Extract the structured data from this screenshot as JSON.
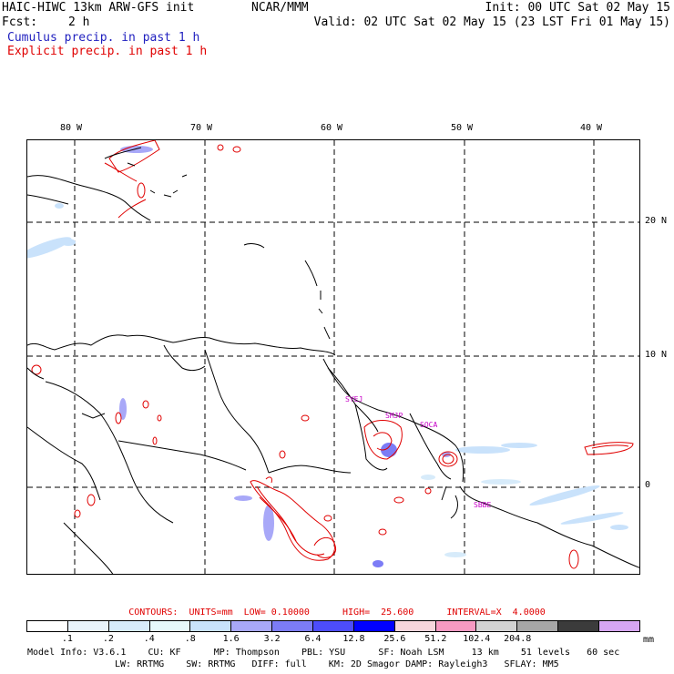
{
  "header": {
    "title": "HAIC-HIWC 13km ARW-GFS init",
    "org": "NCAR/MMM",
    "init": "Init: 00 UTC Sat 02 May 15",
    "fcst_label": "Fcst:",
    "fcst_value": "2 h",
    "valid": "Valid: 02 UTC Sat 02 May 15 (23 LST Fri 01 May 15)",
    "cumulus": "Cumulus precip. in past 1 h",
    "explicit": "Explicit precip. in past 1 h"
  },
  "map": {
    "lon_labels": [
      "80 W",
      "70 W",
      "60 W",
      "50 W",
      "40 W"
    ],
    "lat_labels": [
      "20 N",
      "10 N",
      "0"
    ],
    "stations": [
      "SYEJ",
      "SMJP",
      "SOCA",
      "SBBE"
    ]
  },
  "contours_line": "CONTOURS:  UNITS=mm  LOW= 0.10000      HIGH=  25.600      INTERVAL=X  4.0000",
  "colorbar": {
    "colors": [
      "#ffffff",
      "#e8f3fb",
      "#d7ebfa",
      "#e6f8fa",
      "#c9e2fb",
      "#a8a8f8",
      "#7c7cf6",
      "#4d4dfa",
      "#0000ff",
      "#f7d6dc",
      "#f79ac2",
      "#d2d2d2",
      "#a6a6a6",
      "#3b3b3b",
      "#d6a6f3"
    ],
    "ticks": [
      ".1",
      ".2",
      ".4",
      ".8",
      "1.6",
      "3.2",
      "6.4",
      "12.8",
      "25.6",
      "51.2",
      "102.4",
      "204.8"
    ],
    "units": "mm"
  },
  "model_info": {
    "line1": "Model Info: V3.6.1    CU: KF      MP: Thompson    PBL: YSU      SF: Noah LSM     13 km    51 levels   60 sec",
    "line2": "LW: RRTMG    SW: RRTMG   DIFF: full    KM: 2D Smagor DAMP: Rayleigh3   SFLAY: MM5"
  }
}
